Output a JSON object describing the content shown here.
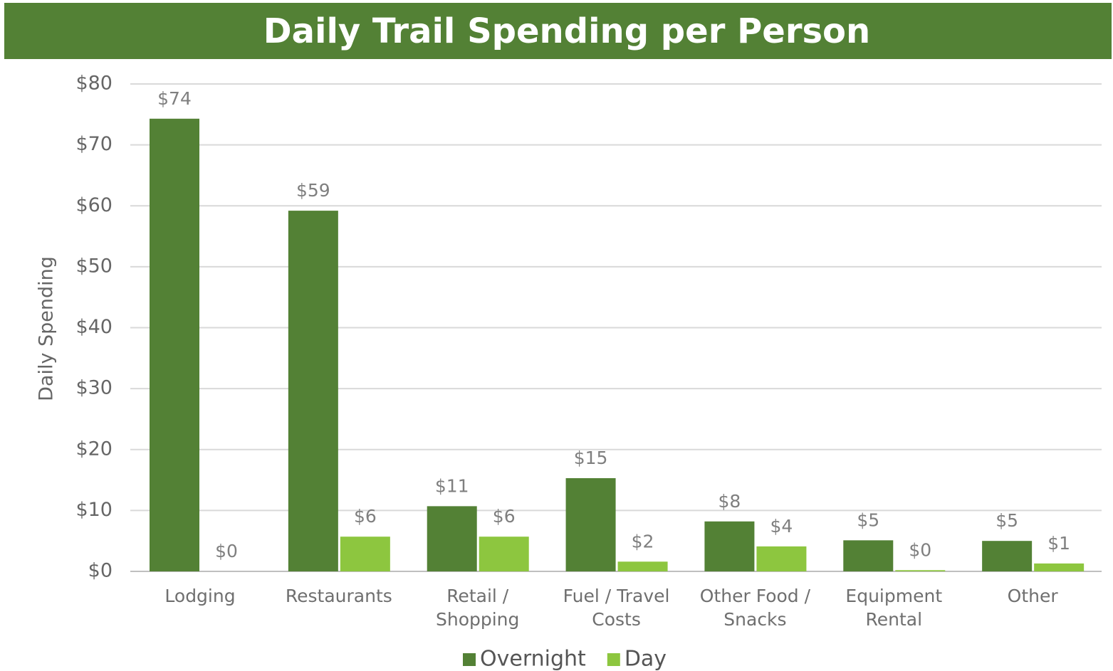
{
  "chart_data": {
    "type": "bar",
    "title": "Daily Trail Spending per Person",
    "y_axis_label": "Daily Spending",
    "categories": [
      "Lodging",
      "Restaurants",
      "Retail / Shopping",
      "Fuel / Travel Costs",
      "Other Food / Snacks",
      "Equipment Rental",
      "Other"
    ],
    "series": [
      {
        "name": "Overnight",
        "color": "#538135",
        "values": [
          74.3,
          59.2,
          10.7,
          15.3,
          8.2,
          5.1,
          5.0
        ],
        "value_labels": [
          "$74",
          "$59",
          "$11",
          "$15",
          "$8",
          "$5",
          "$5"
        ]
      },
      {
        "name": "Day",
        "color": "#8dc63f",
        "values": [
          0,
          5.7,
          5.7,
          1.6,
          4.1,
          0.2,
          1.3
        ],
        "value_labels": [
          "$0",
          "$6",
          "$6",
          "$2",
          "$4",
          "$0",
          "$1"
        ]
      }
    ],
    "ylim": [
      0,
      80
    ],
    "yticks": [
      {
        "value": 0,
        "label": "$0"
      },
      {
        "value": 10,
        "label": "$10"
      },
      {
        "value": 20,
        "label": "$20"
      },
      {
        "value": 30,
        "label": "$30"
      },
      {
        "value": 40,
        "label": "$40"
      },
      {
        "value": 50,
        "label": "$50"
      },
      {
        "value": 60,
        "label": "$60"
      },
      {
        "value": 70,
        "label": "$70"
      },
      {
        "value": 80,
        "label": "$80"
      }
    ],
    "grid": true,
    "legend": "bottom"
  }
}
